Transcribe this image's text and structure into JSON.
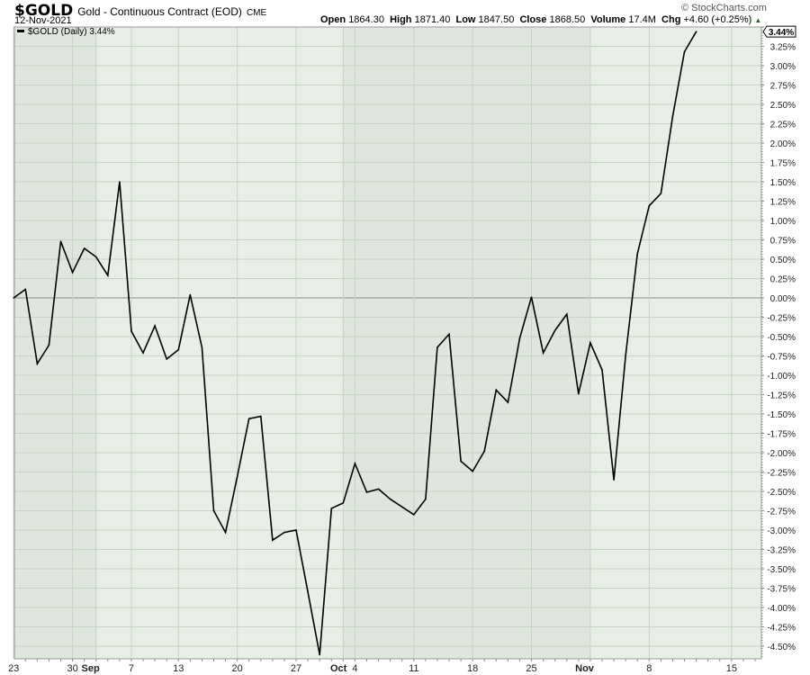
{
  "header": {
    "symbol": "$GOLD",
    "description": "Gold - Continuous Contract (EOD)",
    "exchange": "CME",
    "date": "12-Nov-2021",
    "copyright": "© StockCharts.com",
    "open_label": "Open",
    "open": "1864.30",
    "high_label": "High",
    "high": "1871.40",
    "low_label": "Low",
    "low": "1847.50",
    "close_label": "Close",
    "close": "1868.50",
    "volume_label": "Volume",
    "volume": "17.4M",
    "chg_label": "Chg",
    "chg": "+4.60 (+0.25%)",
    "chg_direction_icon": "triangle-up-icon"
  },
  "chart_data": {
    "type": "line",
    "legend": "$GOLD (Daily) 3.44%",
    "legend_placement": "top-left",
    "last_value_tag": "3.44%",
    "ylim": [
      -4.67,
      3.5
    ],
    "y_ticks": [
      "3.50%",
      "3.25%",
      "3.00%",
      "2.75%",
      "2.50%",
      "2.25%",
      "2.00%",
      "1.75%",
      "1.50%",
      "1.25%",
      "1.00%",
      "0.75%",
      "0.50%",
      "0.25%",
      "0.00%",
      "-0.25%",
      "-0.50%",
      "-0.75%",
      "-1.00%",
      "-1.25%",
      "-1.50%",
      "-1.75%",
      "-2.00%",
      "-2.25%",
      "-2.50%",
      "-2.75%",
      "-3.00%",
      "-3.25%",
      "-3.50%",
      "-3.75%",
      "-4.00%",
      "-4.25%",
      "-4.50%"
    ],
    "x_ticks": [
      {
        "label": "23",
        "date": "2021-08-23",
        "bold": false
      },
      {
        "label": "30",
        "date": "2021-08-30",
        "bold": false
      },
      {
        "label": "Sep",
        "date": "2021-09-01",
        "bold": true
      },
      {
        "label": "7",
        "date": "2021-09-07",
        "bold": false
      },
      {
        "label": "13",
        "date": "2021-09-13",
        "bold": false
      },
      {
        "label": "20",
        "date": "2021-09-20",
        "bold": false
      },
      {
        "label": "27",
        "date": "2021-09-27",
        "bold": false
      },
      {
        "label": "Oct",
        "date": "2021-10-01",
        "bold": true
      },
      {
        "label": "4",
        "date": "2021-10-04",
        "bold": false
      },
      {
        "label": "11",
        "date": "2021-10-11",
        "bold": false
      },
      {
        "label": "18",
        "date": "2021-10-18",
        "bold": false
      },
      {
        "label": "25",
        "date": "2021-10-25",
        "bold": false
      },
      {
        "label": "Nov",
        "date": "2021-11-01",
        "bold": true
      },
      {
        "label": "8",
        "date": "2021-11-08",
        "bold": false
      },
      {
        "label": "15",
        "date": "2021-11-15",
        "bold": false
      }
    ],
    "grid": true,
    "zero_line": true,
    "colors": {
      "line": "#000000",
      "plot_light": "#e8efe6",
      "plot_dark": "#dfe6de",
      "grid": "#c8d2c6"
    },
    "x": [
      "2021-08-23",
      "2021-08-24",
      "2021-08-25",
      "2021-08-26",
      "2021-08-27",
      "2021-08-30",
      "2021-08-31",
      "2021-09-01",
      "2021-09-02",
      "2021-09-03",
      "2021-09-07",
      "2021-09-08",
      "2021-09-09",
      "2021-09-10",
      "2021-09-13",
      "2021-09-14",
      "2021-09-15",
      "2021-09-16",
      "2021-09-17",
      "2021-09-20",
      "2021-09-21",
      "2021-09-22",
      "2021-09-23",
      "2021-09-24",
      "2021-09-27",
      "2021-09-28",
      "2021-09-29",
      "2021-09-30",
      "2021-10-01",
      "2021-10-04",
      "2021-10-05",
      "2021-10-06",
      "2021-10-07",
      "2021-10-08",
      "2021-10-11",
      "2021-10-12",
      "2021-10-13",
      "2021-10-14",
      "2021-10-15",
      "2021-10-18",
      "2021-10-19",
      "2021-10-20",
      "2021-10-21",
      "2021-10-22",
      "2021-10-25",
      "2021-10-26",
      "2021-10-27",
      "2021-10-28",
      "2021-10-29",
      "2021-11-01",
      "2021-11-02",
      "2021-11-03",
      "2021-11-04",
      "2021-11-05",
      "2021-11-08",
      "2021-11-09",
      "2021-11-10",
      "2021-11-11",
      "2021-11-12"
    ],
    "series": [
      {
        "values": [
          0.0,
          0.11,
          -0.85,
          -0.61,
          0.73,
          0.33,
          0.64,
          0.53,
          0.29,
          1.5,
          -0.43,
          -0.71,
          -0.36,
          -0.79,
          -0.67,
          0.04,
          -0.64,
          -2.75,
          -3.03,
          -2.31,
          -1.56,
          -1.53,
          -3.13,
          -3.03,
          -3.0,
          -3.8,
          -4.61,
          -2.72,
          -2.65,
          -2.14,
          -2.51,
          -2.47,
          -2.6,
          -2.7,
          -2.8,
          -2.6,
          -0.64,
          -0.47,
          -2.11,
          -2.24,
          -1.98,
          -1.19,
          -1.35,
          -0.52,
          0.01,
          -0.71,
          -0.42,
          -0.21,
          -1.24,
          -0.58,
          -0.93,
          -2.35,
          -0.74,
          0.57,
          1.19,
          1.35,
          2.35,
          3.18,
          3.44
        ]
      }
    ]
  }
}
